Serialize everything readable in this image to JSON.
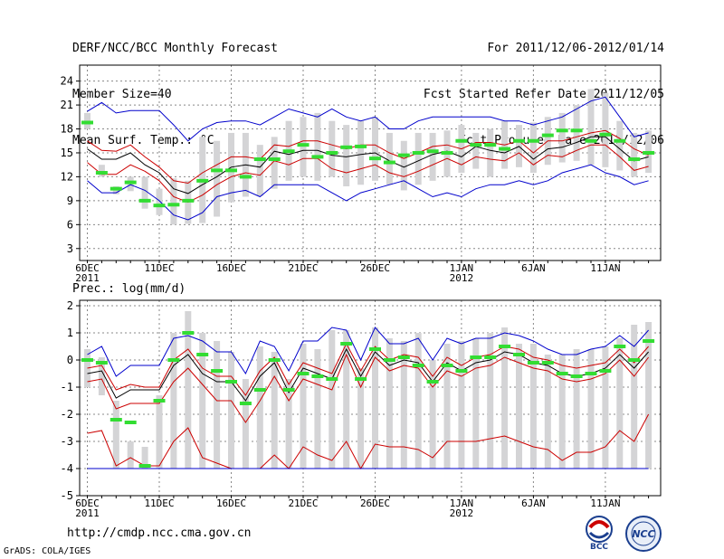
{
  "header": {
    "left": [
      "DERF/NCC/BCC Monthly Forecast",
      "Member Size=40",
      "Mean Surf. Temp.: °C"
    ],
    "right": [
      "For 2011/12/06-2012/01/14",
      "Fcst Started Refer Date 2011/12/05",
      "Fcst Produced Date 2011/12/06"
    ]
  },
  "footer": {
    "url": "http://cmdp.ncc.cma.gov.cn",
    "grads": "GrADS: COLA/IGES",
    "logo1": "BCC",
    "logo2": "NCC"
  },
  "colors": {
    "bar": "#d4d4d6",
    "green": "#33dd33",
    "blue": "#0000cc",
    "red": "#cc0000",
    "black": "#000000",
    "grid": "#888888"
  },
  "chart_data": [
    {
      "type": "box",
      "title": "Mean Surf. Temp.: °C",
      "ylim": [
        1.5,
        26
      ],
      "yticks": [
        3,
        6,
        9,
        12,
        15,
        18,
        21,
        24
      ],
      "xticks": [
        {
          "day": 0,
          "label": "6DEC",
          "sub": "2011"
        },
        {
          "day": 5,
          "label": "11DEC",
          "sub": ""
        },
        {
          "day": 10,
          "label": "16DEC",
          "sub": ""
        },
        {
          "day": 15,
          "label": "21DEC",
          "sub": ""
        },
        {
          "day": 20,
          "label": "26DEC",
          "sub": ""
        },
        {
          "day": 26,
          "label": "1JAN",
          "sub": "2012"
        },
        {
          "day": 31,
          "label": "6JAN",
          "sub": ""
        },
        {
          "day": 36,
          "label": "11JAN",
          "sub": ""
        }
      ],
      "bar_low": [
        18.0,
        12.0,
        9.8,
        10.2,
        8.0,
        7.2,
        6.0,
        6.1,
        6.2,
        7.0,
        8.8,
        9.5,
        9.6,
        10.5,
        11.5,
        12.0,
        11.5,
        12.0,
        10.8,
        11.0,
        11.5,
        11.0,
        10.3,
        11.0,
        11.5,
        12.0,
        12.5,
        13.0,
        12.0,
        13.0,
        13.2,
        12.5,
        13.5,
        13.8,
        14.0,
        13.5,
        13.2,
        12.8,
        12.0,
        12.5
      ],
      "bar_high": [
        20.0,
        13.5,
        10.8,
        12.0,
        12.0,
        10.5,
        11.8,
        11.5,
        17.0,
        16.5,
        17.5,
        17.5,
        16.0,
        17.0,
        19.0,
        19.5,
        20.0,
        19.0,
        18.5,
        19.0,
        19.5,
        17.5,
        16.5,
        17.5,
        17.5,
        17.8,
        18.5,
        17.5,
        18.0,
        19.0,
        18.5,
        18.8,
        19.5,
        20.0,
        21.0,
        23.0,
        22.5,
        19.0,
        17.5,
        17.8
      ],
      "green": [
        18.8,
        12.5,
        10.5,
        11.3,
        9.0,
        8.4,
        8.5,
        9.0,
        11.5,
        12.8,
        12.8,
        12.0,
        14.2,
        14.2,
        15.2,
        16.0,
        14.5,
        15.0,
        15.7,
        15.8,
        14.3,
        13.8,
        14.7,
        15.0,
        15.2,
        15.0,
        16.5,
        16.0,
        16.0,
        15.5,
        16.5,
        16.5,
        17.2,
        17.8,
        17.8,
        16.5,
        17.3,
        16.5,
        14.2,
        15.0
      ],
      "series": [
        {
          "name": "max",
          "color": "blue",
          "values": [
            20.2,
            21.3,
            20.0,
            20.3,
            20.3,
            20.3,
            18.5,
            16.5,
            18.0,
            18.8,
            19.0,
            19.0,
            18.5,
            19.5,
            20.5,
            20.0,
            19.5,
            20.5,
            19.5,
            19.0,
            19.5,
            18.0,
            18.0,
            19.0,
            19.5,
            19.5,
            19.5,
            19.5,
            19.5,
            19.0,
            19.0,
            18.5,
            19.0,
            19.5,
            20.5,
            21.5,
            22.0,
            19.5,
            17.0,
            17.5
          ]
        },
        {
          "name": "upper",
          "color": "red",
          "values": [
            16.5,
            15.3,
            15.2,
            16.0,
            14.5,
            13.2,
            11.5,
            11.2,
            12.5,
            13.5,
            14.5,
            14.5,
            14.2,
            16.0,
            15.8,
            16.5,
            16.5,
            16.0,
            15.5,
            16.0,
            16.0,
            15.0,
            14.3,
            15.0,
            15.8,
            16.0,
            15.5,
            16.3,
            16.3,
            16.0,
            16.5,
            15.0,
            16.5,
            16.5,
            17.0,
            17.5,
            17.8,
            16.8,
            15.5,
            14.7
          ]
        },
        {
          "name": "mean",
          "color": "black",
          "values": [
            15.5,
            14.2,
            14.2,
            15.0,
            13.5,
            12.5,
            10.5,
            9.9,
            11.0,
            12.0,
            13.2,
            13.5,
            13.2,
            15.2,
            14.8,
            15.3,
            15.3,
            14.7,
            14.5,
            14.8,
            15.0,
            14.0,
            13.2,
            14.0,
            14.8,
            15.2,
            14.5,
            15.8,
            15.3,
            15.0,
            15.8,
            14.2,
            15.5,
            15.7,
            16.3,
            17.0,
            17.0,
            15.5,
            14.0,
            14.5
          ]
        },
        {
          "name": "lower",
          "color": "red",
          "values": [
            13.8,
            12.3,
            12.3,
            13.5,
            12.7,
            11.5,
            9.5,
            8.8,
            9.7,
            11.0,
            12.0,
            12.5,
            12.2,
            14.0,
            13.5,
            14.3,
            14.3,
            13.0,
            12.5,
            13.0,
            13.5,
            12.5,
            12.0,
            12.7,
            13.5,
            14.3,
            13.5,
            14.5,
            14.2,
            14.0,
            15.0,
            13.5,
            14.7,
            14.5,
            15.3,
            16.0,
            16.0,
            14.5,
            12.8,
            13.3
          ]
        },
        {
          "name": "min",
          "color": "blue",
          "values": [
            11.5,
            10.0,
            10.0,
            11.0,
            10.3,
            9.0,
            7.2,
            6.6,
            7.5,
            9.5,
            10.0,
            10.3,
            9.5,
            11.0,
            11.0,
            11.0,
            11.0,
            10.0,
            9.0,
            10.0,
            10.5,
            11.0,
            11.5,
            10.5,
            9.5,
            10.0,
            9.5,
            10.5,
            11.0,
            11.0,
            11.5,
            11.0,
            11.5,
            12.5,
            13.0,
            13.5,
            12.5,
            12.0,
            11.0,
            11.5
          ]
        }
      ]
    },
    {
      "type": "box",
      "title": "Prec.: log(mm/d)",
      "ylim": [
        -5,
        2.2
      ],
      "yticks": [
        -5,
        -4,
        -3,
        -2,
        -1,
        0,
        1,
        2
      ],
      "xticks": [
        {
          "day": 0,
          "label": "6DEC",
          "sub": "2011"
        },
        {
          "day": 5,
          "label": "11DEC",
          "sub": ""
        },
        {
          "day": 10,
          "label": "16DEC",
          "sub": ""
        },
        {
          "day": 15,
          "label": "21DEC",
          "sub": ""
        },
        {
          "day": 20,
          "label": "26DEC",
          "sub": ""
        },
        {
          "day": 26,
          "label": "1JAN",
          "sub": "2012"
        },
        {
          "day": 31,
          "label": "6JAN",
          "sub": ""
        },
        {
          "day": 36,
          "label": "11JAN",
          "sub": ""
        }
      ],
      "bar_low": [
        -1.0,
        -1.3,
        -4.0,
        -4.0,
        -4.0,
        -4.0,
        -4.0,
        -4.0,
        -4.0,
        -4.0,
        -4.0,
        -4.0,
        -4.0,
        -4.0,
        -4.0,
        -4.0,
        -4.0,
        -4.0,
        -4.0,
        -4.0,
        -4.0,
        -4.0,
        -4.0,
        -4.0,
        -4.0,
        -4.0,
        -4.0,
        -4.0,
        -4.0,
        -4.0,
        -4.0,
        -4.0,
        -4.0,
        -4.0,
        -4.0,
        -4.0,
        -4.0,
        -4.0,
        -4.0,
        -4.0
      ],
      "bar_high": [
        0.4,
        0.1,
        -1.5,
        -3.0,
        -3.2,
        -1.3,
        1.0,
        1.8,
        1.0,
        0.7,
        0.3,
        -0.7,
        0.5,
        0.3,
        -0.7,
        0.6,
        0.4,
        1.1,
        1.1,
        -0.3,
        1.2,
        0.8,
        0.7,
        1.0,
        0.0,
        0.6,
        0.7,
        0.8,
        1.0,
        1.2,
        0.6,
        0.6,
        0.2,
        0.2,
        0.4,
        0.4,
        0.5,
        0.8,
        1.3,
        1.4
      ],
      "green": [
        0.0,
        -0.1,
        -2.2,
        -2.3,
        -3.9,
        -1.5,
        0.0,
        1.0,
        0.2,
        -0.4,
        -0.8,
        -1.6,
        -1.1,
        0.0,
        -1.1,
        -0.5,
        -0.6,
        -0.7,
        0.6,
        -0.7,
        0.4,
        0.0,
        0.1,
        -0.2,
        -0.8,
        -0.2,
        -0.4,
        0.1,
        0.1,
        0.5,
        0.2,
        -0.1,
        -0.1,
        -0.5,
        -0.6,
        -0.5,
        -0.4,
        0.5,
        0.0,
        0.7
      ],
      "series": [
        {
          "name": "max",
          "color": "blue",
          "values": [
            0.2,
            0.5,
            -0.6,
            -0.2,
            -0.2,
            -0.2,
            0.8,
            0.9,
            0.7,
            0.3,
            0.3,
            -0.5,
            0.7,
            0.5,
            -0.4,
            0.7,
            0.7,
            1.2,
            1.1,
            0.0,
            1.2,
            0.6,
            0.6,
            0.8,
            0.0,
            0.8,
            0.6,
            0.8,
            0.8,
            1.0,
            0.9,
            0.7,
            0.4,
            0.2,
            0.2,
            0.4,
            0.5,
            0.9,
            0.5,
            1.1
          ]
        },
        {
          "name": "upper",
          "color": "red",
          "values": [
            -0.3,
            -0.2,
            -1.1,
            -0.9,
            -1.0,
            -1.0,
            0.0,
            0.4,
            -0.3,
            -0.6,
            -0.6,
            -1.3,
            -0.4,
            0.1,
            -0.9,
            -0.1,
            -0.3,
            -0.5,
            0.6,
            -0.4,
            0.5,
            0.0,
            0.2,
            0.1,
            -0.6,
            0.1,
            -0.2,
            0.1,
            0.2,
            0.5,
            0.4,
            0.1,
            0.0,
            -0.2,
            -0.3,
            -0.2,
            -0.1,
            0.4,
            -0.1,
            0.5
          ]
        },
        {
          "name": "mean",
          "color": "black",
          "values": [
            -0.5,
            -0.4,
            -1.4,
            -1.1,
            -1.1,
            -1.1,
            -0.2,
            0.2,
            -0.5,
            -0.8,
            -0.8,
            -1.5,
            -0.6,
            -0.1,
            -1.2,
            -0.3,
            -0.5,
            -0.7,
            0.4,
            -0.6,
            0.3,
            -0.2,
            0.0,
            -0.1,
            -0.8,
            -0.1,
            -0.4,
            -0.1,
            0.0,
            0.3,
            0.2,
            -0.1,
            -0.2,
            -0.5,
            -0.6,
            -0.5,
            -0.3,
            0.2,
            -0.3,
            0.3
          ]
        },
        {
          "name": "lower",
          "color": "red",
          "values": [
            -0.8,
            -0.7,
            -1.8,
            -1.6,
            -1.6,
            -1.6,
            -0.8,
            -0.3,
            -0.9,
            -1.5,
            -1.5,
            -2.3,
            -1.5,
            -0.6,
            -1.5,
            -0.7,
            -0.9,
            -1.1,
            0.2,
            -1.0,
            0.1,
            -0.4,
            -0.2,
            -0.3,
            -1.0,
            -0.4,
            -0.6,
            -0.3,
            -0.2,
            0.1,
            -0.1,
            -0.3,
            -0.4,
            -0.7,
            -0.8,
            -0.7,
            -0.5,
            0.0,
            -0.6,
            0.1
          ]
        },
        {
          "name": "lower2",
          "color": "red",
          "values": [
            -2.7,
            -2.6,
            -3.9,
            -3.6,
            -3.9,
            -3.9,
            -3.0,
            -2.5,
            -3.6,
            -3.8,
            -4.0,
            -4.0,
            -4.0,
            -3.5,
            -4.0,
            -3.2,
            -3.5,
            -3.7,
            -3.0,
            -4.0,
            -3.1,
            -3.2,
            -3.2,
            -3.3,
            -3.6,
            -3.0,
            -3.0,
            -3.0,
            -2.9,
            -2.8,
            -3.0,
            -3.2,
            -3.3,
            -3.7,
            -3.4,
            -3.4,
            -3.2,
            -2.6,
            -3.0,
            -2.0
          ]
        },
        {
          "name": "min",
          "color": "blue",
          "values": [
            -4.0,
            -4.0,
            -4.0,
            -4.0,
            -4.0,
            -4.0,
            -4.0,
            -4.0,
            -4.0,
            -4.0,
            -4.0,
            -4.0,
            -4.0,
            -4.0,
            -4.0,
            -4.0,
            -4.0,
            -4.0,
            -4.0,
            -4.0,
            -4.0,
            -4.0,
            -4.0,
            -4.0,
            -4.0,
            -4.0,
            -4.0,
            -4.0,
            -4.0,
            -4.0,
            -4.0,
            -4.0,
            -4.0,
            -4.0,
            -4.0,
            -4.0,
            -4.0,
            -4.0,
            -4.0,
            -4.0
          ]
        }
      ]
    }
  ]
}
